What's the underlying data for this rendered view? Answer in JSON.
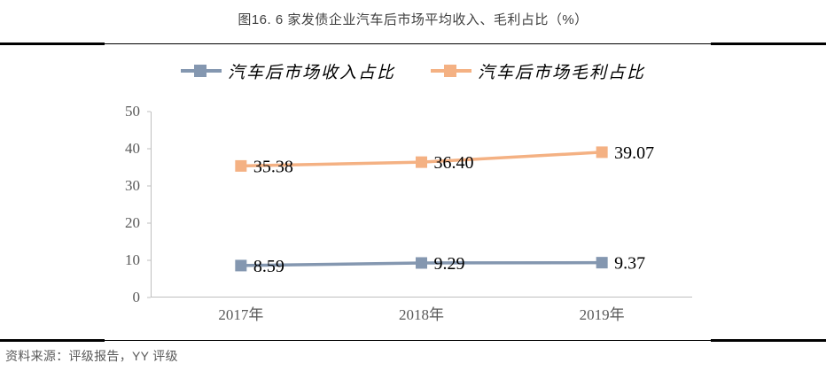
{
  "page": {
    "title": "图16. 6 家发债企业汽车后市场平均收入、毛利占比（%）",
    "source_note": "资料来源：评级报告，YY 评级"
  },
  "chart_data": {
    "type": "line",
    "title": "图16. 6 家发债企业汽车后市场平均收入、毛利占比（%）",
    "categories": [
      "2017年",
      "2018年",
      "2019年"
    ],
    "series": [
      {
        "name": "汽车后市场收入占比",
        "values": [
          8.59,
          9.29,
          9.37
        ],
        "color": "#8497B0"
      },
      {
        "name": "汽车后市场毛利占比",
        "values": [
          35.38,
          36.4,
          39.07
        ],
        "color": "#F4B183"
      }
    ],
    "ylim": [
      0,
      50
    ],
    "yticks": [
      0,
      10,
      20,
      30,
      40,
      50
    ],
    "grid": false,
    "legend_position": "top",
    "data_labels": "right-of-marker, 2 decimals",
    "marker": "square",
    "colors": {
      "axis_line": "#BFBFBF",
      "tick_label": "#595959",
      "data_label": "#000000",
      "title_text": "#3F3F3F",
      "rule_line": "#000000",
      "source_text": "#595959"
    }
  }
}
